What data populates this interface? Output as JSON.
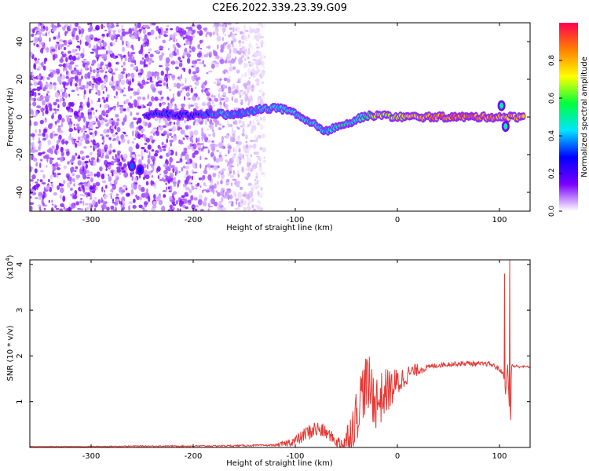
{
  "title": "C2E6.2022.339.23.39.G09",
  "chart_data": [
    {
      "type": "heatmap",
      "xlabel": "Height of straight line (km)",
      "ylabel": "Frequency (Hz)",
      "xlim": [
        -360,
        130
      ],
      "ylim": [
        -50,
        50
      ],
      "xticks": [
        -300,
        -200,
        -100,
        0,
        100
      ],
      "xticklabels": [
        "-300",
        "-200",
        "-100",
        "0",
        "100"
      ],
      "yticks": [
        -40,
        -20,
        0,
        20,
        40
      ],
      "yticklabels": [
        "-40",
        "-20",
        "0",
        "20",
        "40"
      ],
      "colorbar": {
        "label": "Normalized spectral amplitude",
        "range": [
          0,
          1
        ],
        "ticks": [
          0.0,
          0.2,
          0.4,
          0.6,
          0.8
        ],
        "ticklabels": [
          "0.0",
          "0.2",
          "0.4",
          "0.6",
          "0.8"
        ],
        "colormap": [
          "#ffffff",
          "#7a00ff",
          "#0000ff",
          "#00e5ff",
          "#00ff3c",
          "#ffff00",
          "#ff8000",
          "#ff0050"
        ]
      },
      "noise_region": {
        "x": [
          -360,
          -130
        ],
        "amplitude": 0.15
      },
      "signal_track": [
        {
          "x": -245,
          "y": 1,
          "amp": 0.3
        },
        {
          "x": -230,
          "y": 2,
          "amp": 0.35
        },
        {
          "x": -215,
          "y": 1,
          "amp": 0.35
        },
        {
          "x": -200,
          "y": 1,
          "amp": 0.3
        },
        {
          "x": -180,
          "y": 2,
          "amp": 0.4
        },
        {
          "x": -165,
          "y": 1,
          "amp": 0.45
        },
        {
          "x": -150,
          "y": 2,
          "amp": 0.4
        },
        {
          "x": -135,
          "y": 4,
          "amp": 0.45
        },
        {
          "x": -120,
          "y": 5,
          "amp": 0.5
        },
        {
          "x": -105,
          "y": 3,
          "amp": 0.5
        },
        {
          "x": -90,
          "y": -2,
          "amp": 0.5
        },
        {
          "x": -78,
          "y": -5,
          "amp": 0.5
        },
        {
          "x": -68,
          "y": -8,
          "amp": 0.45
        },
        {
          "x": -57,
          "y": -4,
          "amp": 0.6
        },
        {
          "x": -45,
          "y": -3,
          "amp": 0.5
        },
        {
          "x": -35,
          "y": 0,
          "amp": 0.5
        },
        {
          "x": -20,
          "y": 1,
          "amp": 0.75
        },
        {
          "x": 0,
          "y": 0,
          "amp": 0.75
        },
        {
          "x": 40,
          "y": 0,
          "amp": 0.95
        },
        {
          "x": 80,
          "y": 0,
          "amp": 0.95
        },
        {
          "x": 100,
          "y": 0,
          "amp": 0.9
        },
        {
          "x": 125,
          "y": 0,
          "amp": 0.8
        }
      ],
      "features": [
        {
          "x": -260,
          "y": -26,
          "amp": 0.35
        },
        {
          "x": -252,
          "y": -28,
          "amp": 0.3
        },
        {
          "x": 102,
          "y": 6,
          "amp": 0.5
        },
        {
          "x": 106,
          "y": -5,
          "amp": 0.5
        }
      ]
    },
    {
      "type": "line",
      "xlabel": "Height of straight line (km)",
      "ylabel": "SNR (10 * v/v)",
      "yscale_label": "(x10",
      "yscale_exp": "4",
      "yscale_suffix": ")",
      "xlim": [
        -360,
        130
      ],
      "ylim": [
        0,
        4.1
      ],
      "xticks": [
        -300,
        -200,
        -100,
        0,
        100
      ],
      "xticklabels": [
        "-300",
        "-200",
        "-100",
        "0",
        "100"
      ],
      "yticks": [
        1,
        2,
        3,
        4
      ],
      "yticklabels": [
        "1",
        "2",
        "3",
        "4"
      ],
      "series": [
        {
          "color": "#e53935",
          "x": [
            -360,
            -300,
            -250,
            -200,
            -150,
            -120,
            -110,
            -100,
            -95,
            -90,
            -85,
            -80,
            -75,
            -70,
            -65,
            -60,
            -55,
            -50,
            -45,
            -40,
            -35,
            -30,
            -25,
            -20,
            -15,
            -10,
            -5,
            0,
            10,
            20,
            30,
            40,
            50,
            60,
            70,
            80,
            90,
            95,
            100,
            104,
            106,
            108,
            110,
            112,
            115,
            120,
            130
          ],
          "y": [
            0.02,
            0.02,
            0.03,
            0.03,
            0.04,
            0.05,
            0.08,
            0.15,
            0.2,
            0.3,
            0.35,
            0.4,
            0.38,
            0.32,
            0.25,
            0.12,
            0.08,
            0.15,
            0.4,
            0.7,
            1.2,
            1.4,
            1.2,
            1.0,
            1.1,
            1.25,
            1.3,
            1.4,
            1.6,
            1.7,
            1.75,
            1.8,
            1.82,
            1.83,
            1.84,
            1.82,
            1.83,
            1.78,
            1.7,
            1.6,
            1.2,
            1.8,
            0.6,
            1.8,
            1.77,
            1.77,
            1.76
          ]
        }
      ],
      "noise_amplitude": [
        {
          "x": -360,
          "amp": 0.005
        },
        {
          "x": -120,
          "amp": 0.02
        },
        {
          "x": -100,
          "amp": 0.12
        },
        {
          "x": -80,
          "amp": 0.2
        },
        {
          "x": -60,
          "amp": 0.1
        },
        {
          "x": -40,
          "amp": 0.6
        },
        {
          "x": -25,
          "amp": 0.7
        },
        {
          "x": -10,
          "amp": 0.5
        },
        {
          "x": 10,
          "amp": 0.2
        },
        {
          "x": 30,
          "amp": 0.06
        },
        {
          "x": 100,
          "amp": 0.05
        },
        {
          "x": 130,
          "amp": 0.02
        }
      ],
      "spikes": [
        {
          "x": 105,
          "y": 3.8
        },
        {
          "x": 110,
          "y": 4.1
        },
        {
          "x": 111,
          "y": 0.6
        }
      ]
    }
  ]
}
